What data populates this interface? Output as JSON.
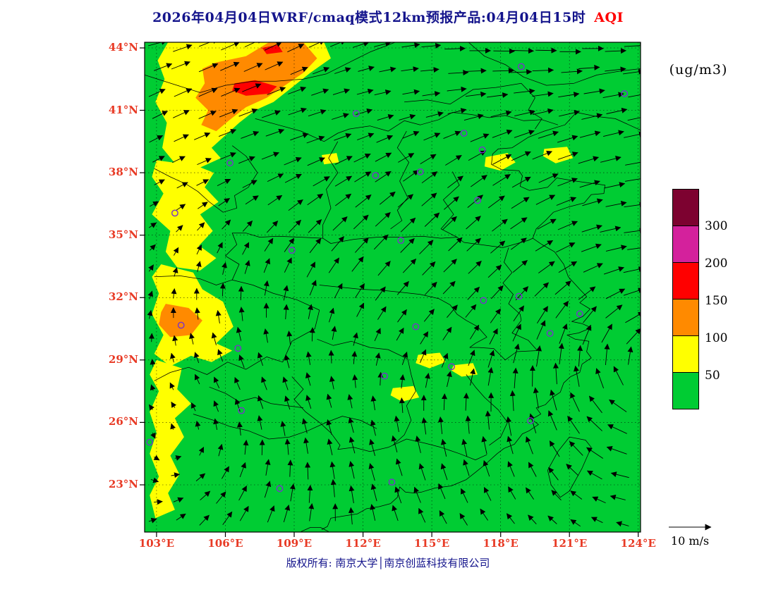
{
  "title": {
    "main": "2026年04月04日WRF/cmaq模式12km预报产品:04月04日15时",
    "highlight": "AQI"
  },
  "units_label": "(ug/m3)",
  "wind_scale": {
    "label": "10 m/s"
  },
  "footer": {
    "copyright": "版权所有: 南京大学│南京创蓝科技有限公司"
  },
  "axes": {
    "lat_labels": [
      "44°N",
      "41°N",
      "38°N",
      "35°N",
      "32°N",
      "29°N",
      "26°N",
      "23°N"
    ],
    "lat_values": [
      44,
      41,
      38,
      35,
      32,
      29,
      26,
      23
    ],
    "lon_labels": [
      "103°E",
      "106°E",
      "109°E",
      "112°E",
      "115°E",
      "118°E",
      "121°E",
      "124°E"
    ],
    "lon_values": [
      103,
      106,
      109,
      112,
      115,
      118,
      121,
      124
    ]
  },
  "legend": {
    "tick_labels": [
      "300",
      "200",
      "150",
      "100",
      "50"
    ],
    "colors_top_to_bottom": [
      "#7D0230",
      "#D4219C",
      "#FF0000",
      "#FF8A00",
      "#FFFF00",
      "#00CC33"
    ]
  },
  "colors": {
    "title": "#14148C",
    "axis_label": "#E83A25",
    "background_green": "#00CC33",
    "marker_purple": "#7733CC"
  },
  "chart_data": {
    "type": "heatmap",
    "variable": "AQI",
    "units": "ug/m3",
    "map_extent": {
      "lon_min": 102.48,
      "lon_max": 124.1,
      "lat_min": 20.73,
      "lat_max": 44.27
    },
    "contour_levels": [
      50,
      100,
      150,
      200,
      300
    ],
    "level_colors": {
      "0-50": "#00CC33",
      "50-100": "#FFFF00",
      "100-150": "#FF8A00",
      "150-200": "#FF0000",
      "200-300": "#D4219C",
      "300+": "#7D0230"
    },
    "wind_reference_ms": 10,
    "aqi_regions": [
      {
        "level": "50-100",
        "poly": [
          [
            103.5,
            44.27
          ],
          [
            110.3,
            44.27
          ],
          [
            110.6,
            43.5
          ],
          [
            109.7,
            42.8
          ],
          [
            108.9,
            42.1
          ],
          [
            108.1,
            41.4
          ],
          [
            107.3,
            41.0
          ],
          [
            106.6,
            40.4
          ],
          [
            106.0,
            39.8
          ],
          [
            105.4,
            39.2
          ],
          [
            105.8,
            38.7
          ],
          [
            104.8,
            38.2
          ],
          [
            103.8,
            38.45
          ],
          [
            103.25,
            39.2
          ],
          [
            103.45,
            40.4
          ],
          [
            102.95,
            41.4
          ],
          [
            103.35,
            42.5
          ],
          [
            103.05,
            43.4
          ]
        ]
      },
      {
        "level": "50-100",
        "poly": [
          [
            103.0,
            38.6
          ],
          [
            104.7,
            38.35
          ],
          [
            105.5,
            38.0
          ],
          [
            105.1,
            37.3
          ],
          [
            105.7,
            36.6
          ],
          [
            104.9,
            36.0
          ],
          [
            105.45,
            35.2
          ],
          [
            104.85,
            34.5
          ],
          [
            105.6,
            33.9
          ],
          [
            104.9,
            33.3
          ],
          [
            103.9,
            33.45
          ],
          [
            103.4,
            34.2
          ],
          [
            103.6,
            35.2
          ],
          [
            102.8,
            36.0
          ],
          [
            103.3,
            37.0
          ],
          [
            102.8,
            37.8
          ]
        ]
      },
      {
        "level": "50-100",
        "poly": [
          [
            103.2,
            33.6
          ],
          [
            104.6,
            33.2
          ],
          [
            105.0,
            32.4
          ],
          [
            105.9,
            31.8
          ],
          [
            106.35,
            30.6
          ],
          [
            105.6,
            29.8
          ],
          [
            106.3,
            29.45
          ],
          [
            105.4,
            28.9
          ],
          [
            104.5,
            29.2
          ],
          [
            103.6,
            28.7
          ],
          [
            102.9,
            29.3
          ],
          [
            103.3,
            30.2
          ],
          [
            102.8,
            31.2
          ],
          [
            103.1,
            32.2
          ],
          [
            102.8,
            33.0
          ]
        ]
      },
      {
        "level": "50-100",
        "poly": [
          [
            103.0,
            29.0
          ],
          [
            104.1,
            28.6
          ],
          [
            103.9,
            27.6
          ],
          [
            104.5,
            26.9
          ],
          [
            103.8,
            26.2
          ],
          [
            104.2,
            25.3
          ],
          [
            103.6,
            24.4
          ],
          [
            104.0,
            23.5
          ],
          [
            103.5,
            22.6
          ],
          [
            103.8,
            21.8
          ],
          [
            102.95,
            21.4
          ],
          [
            102.7,
            22.5
          ],
          [
            103.1,
            23.4
          ],
          [
            102.7,
            24.5
          ],
          [
            103.0,
            25.5
          ],
          [
            102.7,
            26.5
          ],
          [
            103.1,
            27.5
          ],
          [
            102.7,
            28.3
          ]
        ]
      },
      {
        "level": "50-100",
        "poly": [
          [
            117.35,
            38.75
          ],
          [
            118.3,
            38.95
          ],
          [
            118.65,
            38.5
          ],
          [
            118.0,
            38.1
          ],
          [
            117.3,
            38.3
          ]
        ]
      },
      {
        "level": "50-100",
        "poly": [
          [
            119.9,
            39.15
          ],
          [
            120.9,
            39.25
          ],
          [
            121.15,
            38.7
          ],
          [
            120.4,
            38.45
          ],
          [
            119.85,
            38.8
          ]
        ]
      },
      {
        "level": "50-100",
        "poly": [
          [
            114.4,
            29.25
          ],
          [
            115.35,
            29.35
          ],
          [
            115.6,
            28.9
          ],
          [
            114.9,
            28.6
          ],
          [
            114.3,
            28.85
          ]
        ]
      },
      {
        "level": "50-100",
        "poly": [
          [
            115.95,
            28.75
          ],
          [
            116.8,
            28.85
          ],
          [
            117.0,
            28.3
          ],
          [
            116.3,
            28.2
          ],
          [
            115.85,
            28.5
          ]
        ]
      },
      {
        "level": "50-100",
        "poly": [
          [
            113.3,
            27.65
          ],
          [
            114.2,
            27.75
          ],
          [
            114.45,
            27.2
          ],
          [
            113.7,
            27.0
          ],
          [
            113.2,
            27.3
          ]
        ]
      },
      {
        "level": "50-100",
        "poly": [
          [
            110.2,
            38.85
          ],
          [
            110.85,
            38.95
          ],
          [
            110.95,
            38.5
          ],
          [
            110.3,
            38.4
          ]
        ]
      },
      {
        "level": "100-150",
        "poly": [
          [
            105.6,
            43.3
          ],
          [
            106.9,
            43.6
          ],
          [
            107.9,
            44.27
          ],
          [
            109.4,
            44.27
          ],
          [
            110.0,
            43.5
          ],
          [
            109.4,
            42.8
          ],
          [
            108.6,
            42.2
          ],
          [
            107.8,
            41.6
          ],
          [
            106.9,
            41.15
          ],
          [
            106.2,
            40.55
          ],
          [
            105.6,
            40.0
          ],
          [
            104.95,
            40.3
          ],
          [
            105.25,
            41.0
          ],
          [
            104.7,
            41.6
          ],
          [
            105.1,
            42.3
          ],
          [
            105.0,
            43.0
          ]
        ]
      },
      {
        "level": "100-150",
        "poly": [
          [
            103.4,
            31.7
          ],
          [
            104.4,
            31.5
          ],
          [
            105.0,
            30.9
          ],
          [
            104.5,
            30.2
          ],
          [
            103.6,
            30.1
          ],
          [
            103.1,
            30.7
          ],
          [
            103.2,
            31.3
          ]
        ]
      },
      {
        "level": "150-200",
        "poly": [
          [
            106.4,
            42.3
          ],
          [
            107.3,
            42.45
          ],
          [
            108.25,
            42.15
          ],
          [
            107.9,
            41.8
          ],
          [
            106.9,
            41.7
          ],
          [
            106.3,
            41.95
          ]
        ]
      },
      {
        "level": "150-200",
        "poly": [
          [
            107.6,
            44.0
          ],
          [
            108.3,
            44.15
          ],
          [
            108.5,
            43.8
          ],
          [
            107.8,
            43.7
          ]
        ]
      }
    ],
    "city_markers": [
      [
        103.8,
        36.06
      ],
      [
        106.2,
        38.47
      ],
      [
        111.7,
        40.85
      ],
      [
        112.55,
        37.87
      ],
      [
        114.5,
        38.04
      ],
      [
        116.4,
        39.9
      ],
      [
        117.2,
        39.1
      ],
      [
        117.0,
        36.67
      ],
      [
        113.65,
        34.75
      ],
      [
        108.9,
        34.27
      ],
      [
        104.07,
        30.67
      ],
      [
        106.55,
        29.56
      ],
      [
        114.3,
        30.6
      ],
      [
        117.25,
        31.86
      ],
      [
        118.8,
        32.06
      ],
      [
        121.45,
        31.22
      ],
      [
        120.15,
        30.28
      ],
      [
        115.86,
        28.68
      ],
      [
        112.94,
        28.23
      ],
      [
        106.7,
        26.57
      ],
      [
        102.7,
        25.05
      ],
      [
        119.3,
        26.08
      ],
      [
        113.26,
        23.13
      ],
      [
        108.37,
        22.82
      ],
      [
        118.9,
        43.1
      ],
      [
        123.4,
        41.8
      ]
    ]
  }
}
